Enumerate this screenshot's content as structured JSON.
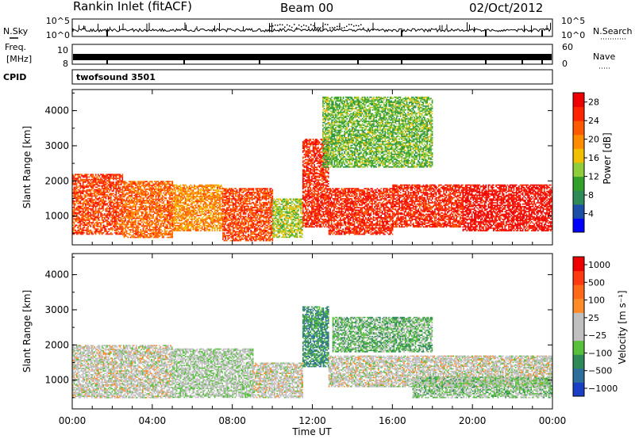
{
  "header": {
    "title_left": "Rankin Inlet (fitACF)",
    "title_center": "Beam 00",
    "title_right": "02/Oct/2012"
  },
  "strips": {
    "nsky": {
      "label": "N.Sky",
      "yticks": [
        "10^5",
        "10^0"
      ]
    },
    "nsearch": {
      "label": "N.Search",
      "yticks": [
        "10^5",
        "10^0"
      ]
    },
    "freq": {
      "label_line1": "Freq.",
      "label_line2": "[MHz]",
      "yticks": [
        "10",
        "8"
      ]
    },
    "nave": {
      "label": "Nave",
      "yticks": [
        "60",
        "0"
      ]
    },
    "cpid": {
      "label": "CPID",
      "value": "twofsound 3501"
    }
  },
  "colors": {
    "power": [
      "#0000ff",
      "#1d4fa8",
      "#2e8b57",
      "#33a02c",
      "#8fcd3c",
      "#f0c000",
      "#ff8c00",
      "#ff5a00",
      "#ff2400",
      "#ee0000"
    ],
    "velocity": [
      "#1a3fc4",
      "#2e6e9a",
      "#2e8b57",
      "#57c03c",
      "#c0c0c0",
      "#c0c0c0",
      "#ff8c28",
      "#ff6a1a",
      "#ff3a10",
      "#ee0000"
    ]
  },
  "chart_data": [
    {
      "type": "heatmap",
      "ylabel": "Slant Range [km]",
      "xlabel": "Time UT",
      "xticks": [
        "00:00",
        "04:00",
        "08:00",
        "12:00",
        "16:00",
        "20:00",
        "00:00"
      ],
      "xlim": [
        0,
        24
      ],
      "yticks": [
        1000,
        2000,
        3000,
        4000
      ],
      "ylim": [
        180,
        4600
      ],
      "colorbar": {
        "label": "Power [dB]",
        "ticks": [
          "4",
          "8",
          "12",
          "16",
          "20",
          "24",
          "28"
        ],
        "range": [
          0,
          30
        ]
      },
      "regions": [
        {
          "t": [
            0.0,
            2.5
          ],
          "r": [
            500,
            2200
          ],
          "v": 24
        },
        {
          "t": [
            2.5,
            5.0
          ],
          "r": [
            400,
            2000
          ],
          "v": 22
        },
        {
          "t": [
            5.0,
            7.5
          ],
          "r": [
            600,
            1900
          ],
          "v": 20
        },
        {
          "t": [
            7.5,
            10.0
          ],
          "r": [
            300,
            1800
          ],
          "v": 24
        },
        {
          "t": [
            10.0,
            11.5
          ],
          "r": [
            400,
            1500
          ],
          "v": 14
        },
        {
          "t": [
            11.5,
            12.8
          ],
          "r": [
            700,
            3200
          ],
          "v": 26
        },
        {
          "t": [
            12.8,
            16.0
          ],
          "r": [
            500,
            1800
          ],
          "v": 26
        },
        {
          "t": [
            16.0,
            19.5
          ],
          "r": [
            700,
            1900
          ],
          "v": 26
        },
        {
          "t": [
            19.5,
            24.0
          ],
          "r": [
            600,
            1900
          ],
          "v": 28
        },
        {
          "t": [
            12.5,
            18.0
          ],
          "r": [
            2400,
            4400
          ],
          "v": 12
        }
      ]
    },
    {
      "type": "heatmap",
      "ylabel": "Slant Range [km]",
      "xlabel": "Time UT",
      "xticks": [
        "00:00",
        "04:00",
        "08:00",
        "12:00",
        "16:00",
        "20:00",
        "00:00"
      ],
      "xlim": [
        0,
        24
      ],
      "yticks": [
        1000,
        2000,
        3000,
        4000
      ],
      "ylim": [
        180,
        4600
      ],
      "colorbar": {
        "label": "Velocity [m s⁻¹]",
        "ticks": [
          "1000",
          "500",
          "100",
          "25",
          "−25",
          "−100",
          "−500",
          "−1000"
        ],
        "range": [
          -1000,
          1000
        ]
      },
      "regions": [
        {
          "t": [
            0.0,
            5.0
          ],
          "r": [
            500,
            2000
          ],
          "v": 0
        },
        {
          "t": [
            5.0,
            9.0
          ],
          "r": [
            500,
            1900
          ],
          "v": -100
        },
        {
          "t": [
            9.0,
            11.5
          ],
          "r": [
            500,
            1500
          ],
          "v": 0
        },
        {
          "t": [
            11.5,
            12.8
          ],
          "r": [
            1400,
            3100
          ],
          "v": -500
        },
        {
          "t": [
            12.8,
            24.0
          ],
          "r": [
            800,
            1700
          ],
          "v": 0
        },
        {
          "t": [
            13.0,
            18.0
          ],
          "r": [
            1800,
            2800
          ],
          "v": -300
        },
        {
          "t": [
            17.0,
            24.0
          ],
          "r": [
            500,
            1100
          ],
          "v": -200
        }
      ]
    }
  ]
}
